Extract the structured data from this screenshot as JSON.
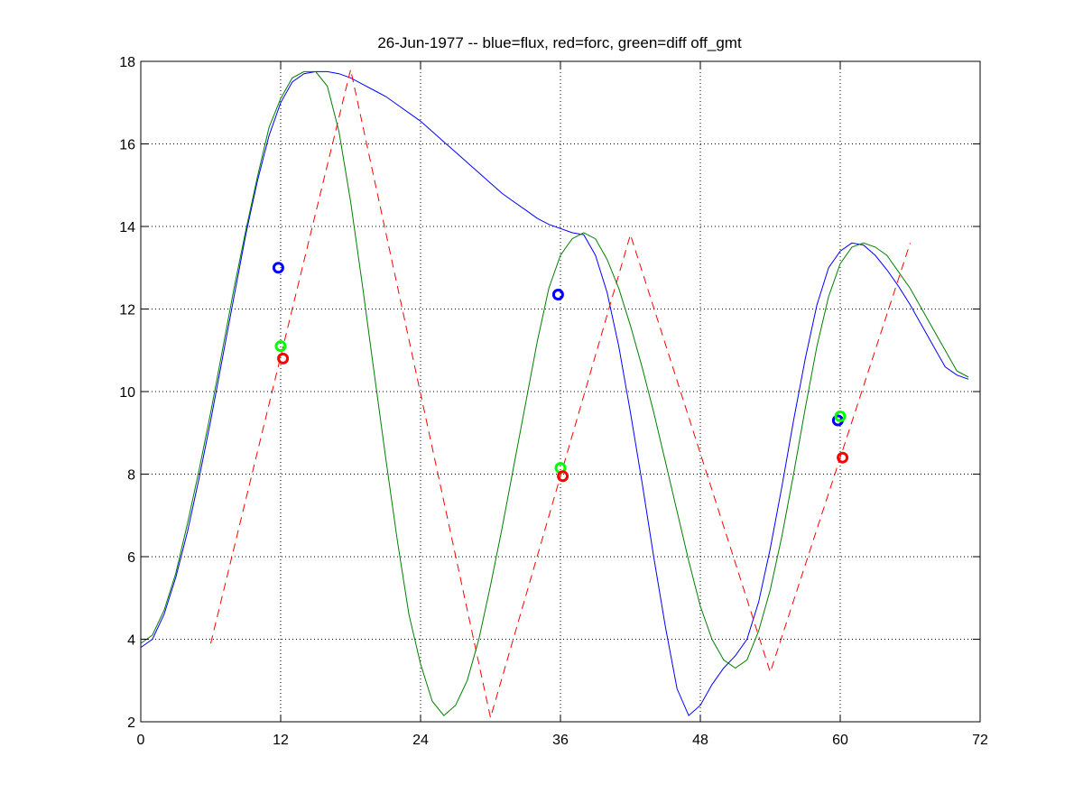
{
  "chart_data": {
    "type": "line",
    "title": "26-Jun-1977 -- blue=flux, red=forc, green=diff off_gmt",
    "xlabel": "",
    "ylabel": "",
    "xlim": [
      0,
      72
    ],
    "ylim": [
      2,
      18
    ],
    "xticks": [
      0,
      12,
      24,
      36,
      48,
      60,
      72
    ],
    "yticks": [
      2,
      4,
      6,
      8,
      10,
      12,
      14,
      16,
      18
    ],
    "grid": true,
    "colors": {
      "flux": "#0000ff",
      "forc": "#ff0000",
      "diff": "#008000",
      "diff_marker": "#00ff00"
    },
    "series": [
      {
        "color": "#0000ff",
        "style": "solid",
        "x": [
          0,
          1,
          2,
          3,
          4,
          5,
          6,
          7,
          8,
          9,
          10,
          11,
          12,
          13,
          14,
          15,
          16,
          17,
          18,
          19,
          20,
          21,
          22,
          23,
          24,
          25,
          26,
          27,
          28,
          29,
          30,
          31,
          32,
          33,
          34,
          35,
          36,
          37,
          38,
          39,
          40,
          41,
          42,
          43,
          44,
          45,
          46,
          47,
          48,
          49,
          50,
          51,
          52,
          53,
          54,
          55,
          56,
          57,
          58,
          59,
          60,
          61,
          62,
          63,
          64,
          65,
          66,
          67,
          68,
          69,
          70,
          71
        ],
        "y": [
          3.8,
          4.0,
          4.6,
          5.5,
          6.6,
          7.9,
          9.3,
          10.8,
          12.3,
          13.8,
          15.1,
          16.2,
          17.0,
          17.5,
          17.7,
          17.75,
          17.75,
          17.7,
          17.6,
          17.45,
          17.3,
          17.15,
          16.95,
          16.75,
          16.55,
          16.3,
          16.05,
          15.8,
          15.55,
          15.3,
          15.05,
          14.8,
          14.6,
          14.4,
          14.2,
          14.05,
          13.95,
          13.85,
          13.8,
          13.3,
          12.4,
          11.1,
          9.5,
          7.8,
          6.0,
          4.3,
          2.8,
          2.15,
          2.4,
          2.9,
          3.3,
          3.6,
          4.0,
          4.9,
          6.2,
          7.7,
          9.3,
          10.8,
          12.1,
          13.0,
          13.4,
          13.6,
          13.55,
          13.3,
          12.95,
          12.55,
          12.1,
          11.6,
          11.1,
          10.6,
          10.4,
          10.3
        ]
      },
      {
        "color": "#ff0000",
        "style": "dashed",
        "x": [
          6,
          18,
          30,
          42,
          54,
          66
        ],
        "y": [
          3.9,
          17.8,
          2.1,
          13.8,
          3.2,
          13.6
        ]
      },
      {
        "color": "#008000",
        "style": "solid",
        "x": [
          0,
          1,
          2,
          3,
          4,
          5,
          6,
          7,
          8,
          9,
          10,
          11,
          12,
          13,
          14,
          15,
          16,
          17,
          18,
          19,
          20,
          21,
          22,
          23,
          24,
          25,
          26,
          27,
          28,
          29,
          30,
          31,
          32,
          33,
          34,
          35,
          36,
          37,
          38,
          39,
          40,
          41,
          42,
          43,
          44,
          45,
          46,
          47,
          48,
          49,
          50,
          51,
          52,
          53,
          54,
          55,
          56,
          57,
          58,
          59,
          60,
          61,
          62,
          63,
          64,
          65,
          66,
          67,
          68,
          69,
          70,
          71
        ],
        "y": [
          3.9,
          4.1,
          4.7,
          5.6,
          6.8,
          8.1,
          9.5,
          11.0,
          12.5,
          13.9,
          15.2,
          16.4,
          17.1,
          17.6,
          17.75,
          17.75,
          17.4,
          16.3,
          14.6,
          12.6,
          10.5,
          8.4,
          6.4,
          4.6,
          3.4,
          2.5,
          2.15,
          2.4,
          3.0,
          4.0,
          5.3,
          6.7,
          8.2,
          9.7,
          11.2,
          12.5,
          13.3,
          13.7,
          13.85,
          13.7,
          13.2,
          12.5,
          11.6,
          10.6,
          9.5,
          8.3,
          7.1,
          5.9,
          4.8,
          4.0,
          3.5,
          3.3,
          3.5,
          4.2,
          5.2,
          6.5,
          8.0,
          9.6,
          11.1,
          12.3,
          13.1,
          13.5,
          13.6,
          13.5,
          13.3,
          12.9,
          12.5,
          12.0,
          11.5,
          11.0,
          10.5,
          10.35
        ]
      }
    ],
    "markers": [
      {
        "series": "flux",
        "color": "#0000ff",
        "points": [
          [
            11.8,
            13.0
          ],
          [
            35.8,
            12.35
          ],
          [
            59.8,
            9.3
          ]
        ]
      },
      {
        "series": "diff",
        "color": "#00ff00",
        "points": [
          [
            12.0,
            11.1
          ],
          [
            36.0,
            8.15
          ],
          [
            60.0,
            9.4
          ]
        ]
      },
      {
        "series": "forc",
        "color": "#ff0000",
        "points": [
          [
            12.2,
            10.8
          ],
          [
            36.2,
            7.95
          ],
          [
            60.2,
            8.4
          ]
        ]
      }
    ]
  }
}
